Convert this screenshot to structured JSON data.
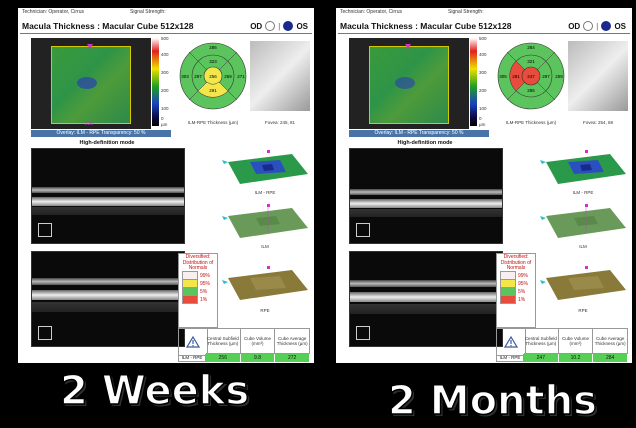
{
  "header": {
    "technician": "Technician: Operator, Cirrus",
    "signal": "Signal Strength:"
  },
  "title": "Macula Thickness : Macular Cube 512x128",
  "eye_od": "OD",
  "eye_os": "OS",
  "overlay_caption": "Overlay: ILM - RPE  Transparency: 50 %",
  "colorbar": {
    "labels": [
      "500",
      "400",
      "300",
      "200",
      "100",
      "0"
    ],
    "unit": "µm"
  },
  "etdrs_caption": "ILM-RPE Thickness (µm)",
  "hd_mode": "High-definition mode",
  "surface_labels": {
    "ilm_rpe": "ILM - RPE",
    "ilm": "ILM",
    "rpe": "RPE"
  },
  "legend": {
    "title": "Diversified: Distribution of Normals",
    "levels": [
      "99%",
      "95%",
      "5%",
      "1%"
    ]
  },
  "table": {
    "headers": [
      "Central Subfield Thickness (µm)",
      "Cube Volume (mm³)",
      "Cube Average Thickness (µm)"
    ],
    "row_label": "ILM - RPE"
  },
  "reports": [
    {
      "fundus_num": "256",
      "fovea": "Fovea: 245, 81",
      "etdrs": {
        "top": "286",
        "inner_top": "323",
        "left": "303",
        "inner_left": "297",
        "center": "256",
        "inner_right": "269",
        "right": "271",
        "inner_bottom": "291",
        "bottom": "",
        "center_color": "#f2e64a",
        "ring_color": "#5cc45c"
      },
      "values": [
        "256",
        "9.8",
        "272"
      ],
      "caption": "2 Weeks"
    },
    {
      "fundus_num": "",
      "fovea": "Fovea: 254, 68",
      "etdrs": {
        "top": "284",
        "inner_top": "321",
        "left": "305",
        "inner_left": "281",
        "center": "247",
        "inner_right": "297",
        "right": "259",
        "inner_bottom": "285",
        "bottom": "",
        "center_color": "#e84c3c",
        "ring_color": "#5cc45c"
      },
      "values": [
        "247",
        "10.2",
        "284"
      ],
      "caption": "2 Months"
    }
  ]
}
